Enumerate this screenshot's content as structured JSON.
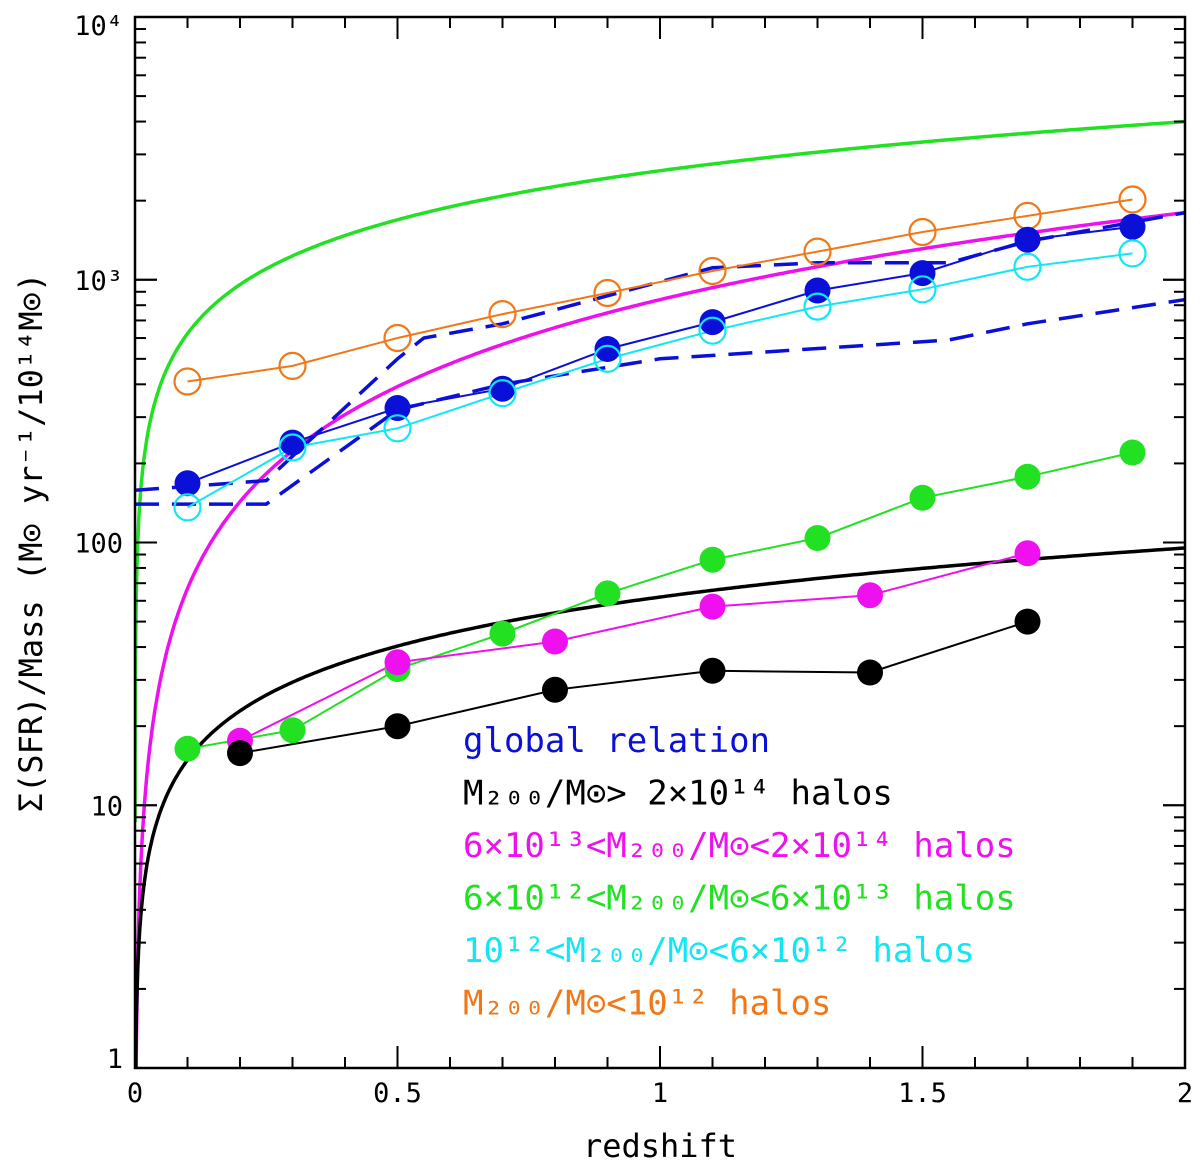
{
  "chart_data": {
    "type": "line",
    "xlabel": "redshift",
    "ylabel": "Σ(SFR)/Mass (M⊙ yr⁻¹/10¹⁴M⊙)",
    "xlim": [
      0,
      2
    ],
    "ylim": [
      1,
      10000
    ],
    "yscale": "log",
    "grid": false,
    "legend_position": "bottom-right",
    "x_ticks": [
      {
        "value": 0,
        "label": "0"
      },
      {
        "value": 0.5,
        "label": "0.5"
      },
      {
        "value": 1,
        "label": "1"
      },
      {
        "value": 1.5,
        "label": "1.5"
      },
      {
        "value": 2,
        "label": "2"
      }
    ],
    "y_ticks": [
      {
        "value": 1,
        "label": "1"
      },
      {
        "value": 10,
        "label": "10"
      },
      {
        "value": 100,
        "label": "100"
      },
      {
        "value": 1000,
        "label": "10³"
      },
      {
        "value": 10000,
        "label": "10⁴"
      }
    ],
    "legend": [
      {
        "text": "global relation",
        "color": "#0a10d8"
      },
      {
        "text": "M₂₀₀/M⊙> 2×10¹⁴ halos",
        "color": "#000000"
      },
      {
        "text": "6×10¹³<M₂₀₀/M⊙<2×10¹⁴ halos",
        "color": "#ee10ee"
      },
      {
        "text": "6×10¹²<M₂₀₀/M⊙<6×10¹³ halos",
        "color": "#22e022"
      },
      {
        "text": "10¹²<M₂₀₀/M⊙<6×10¹² halos",
        "color": "#10e6f4"
      },
      {
        "text": "M₂₀₀/M⊙<10¹² halos",
        "color": "#f07818"
      }
    ],
    "series": [
      {
        "name": "M₂₀₀/M⊙<10¹² halos",
        "color": "#f07818",
        "marker": "open",
        "x": [
          0.1,
          0.3,
          0.5,
          0.7,
          0.9,
          1.1,
          1.3,
          1.5,
          1.7,
          1.9
        ],
        "y": [
          410,
          470,
          600,
          740,
          890,
          1080,
          1280,
          1520,
          1750,
          2020
        ]
      },
      {
        "name": "global relation",
        "color": "#0a10d8",
        "marker": "filled",
        "x": [
          0.1,
          0.3,
          0.5,
          0.7,
          0.9,
          1.1,
          1.3,
          1.5,
          1.7,
          1.9
        ],
        "y": [
          168,
          240,
          325,
          385,
          545,
          690,
          910,
          1060,
          1420,
          1590
        ]
      },
      {
        "name": "10¹²<M₂₀₀/M⊙<6×10¹² halos",
        "color": "#10e6f4",
        "marker": "open",
        "x": [
          0.1,
          0.3,
          0.5,
          0.7,
          0.9,
          1.1,
          1.3,
          1.5,
          1.7,
          1.9
        ],
        "y": [
          136,
          230,
          272,
          370,
          500,
          640,
          790,
          920,
          1120,
          1260
        ]
      },
      {
        "name": "6×10¹²<M₂₀₀/M⊙<6×10¹³ halos",
        "color": "#22e022",
        "marker": "filled",
        "x": [
          0.1,
          0.3,
          0.5,
          0.7,
          0.9,
          1.1,
          1.3,
          1.5,
          1.7,
          1.9
        ],
        "y": [
          16.4,
          19.3,
          33,
          45,
          64,
          86,
          104,
          148,
          178,
          220
        ]
      },
      {
        "name": "6×10¹³<M₂₀₀/M⊙<2×10¹⁴ halos",
        "color": "#ee10ee",
        "marker": "filled",
        "x": [
          0.2,
          0.5,
          0.8,
          1.1,
          1.4,
          1.7
        ],
        "y": [
          17.6,
          35,
          42,
          57,
          63,
          91
        ]
      },
      {
        "name": "M₂₀₀/M⊙> 2×10¹⁴ halos",
        "color": "#000000",
        "marker": "filled",
        "x": [
          0.2,
          0.5,
          0.8,
          1.1,
          1.4,
          1.7
        ],
        "y": [
          15.8,
          20,
          27.5,
          32.5,
          32,
          50
        ]
      }
    ],
    "dashed_lines": [
      {
        "color": "#0a10d8",
        "x": [
          0,
          0.25,
          0.5,
          0.55,
          0.7,
          1.1,
          1.3,
          1.55,
          1.7,
          2.0
        ],
        "y": [
          158,
          172,
          500,
          600,
          680,
          1110,
          1160,
          1160,
          1400,
          1800
        ]
      },
      {
        "color": "#0a10d8",
        "x": [
          0,
          0.25,
          0.5,
          0.7,
          1.0,
          1.55,
          1.7,
          2.0
        ],
        "y": [
          140,
          140,
          320,
          400,
          500,
          590,
          680,
          840
        ]
      }
    ],
    "model_curves": [
      {
        "color": "#22e022",
        "amplitude": 2600,
        "exponent": 0.62
      },
      {
        "color": "#ee10ee",
        "amplitude": 840,
        "exponent": 1.1
      },
      {
        "color": "#000000",
        "amplitude": 62,
        "exponent": 0.62
      }
    ]
  }
}
